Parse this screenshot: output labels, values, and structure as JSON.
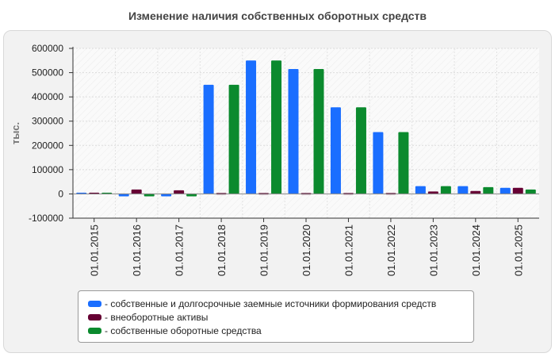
{
  "chart_data": {
    "type": "bar",
    "title": "Изменение наличия собственных оборотных средств",
    "ylabel": "тыс.",
    "xlabel": "",
    "ylim": [
      -100000,
      600000
    ],
    "yticks": [
      -100000,
      0,
      100000,
      200000,
      300000,
      400000,
      500000,
      600000
    ],
    "categories": [
      "01.01.2015",
      "01.01.2016",
      "01.01.2017",
      "01.01.2018",
      "01.01.2019",
      "01.01.2020",
      "01.01.2021",
      "01.01.2022",
      "01.01.2023",
      "01.01.2024",
      "01.01.2025"
    ],
    "series": [
      {
        "name": "- собственные и долгосрочные заемные источники формирования средств",
        "color": "#1a6eff",
        "values": [
          5000,
          -10000,
          -10000,
          450000,
          550000,
          515000,
          357000,
          255000,
          32000,
          32000,
          25000
        ]
      },
      {
        "name": "- внеоборотные активы",
        "color": "#660033",
        "values": [
          5000,
          18000,
          15000,
          4000,
          4000,
          4000,
          4000,
          4000,
          10000,
          12000,
          25000
        ]
      },
      {
        "name": "- собственные оборотные средства",
        "color": "#0b8a2e",
        "values": [
          5000,
          -10000,
          -10000,
          450000,
          550000,
          515000,
          357000,
          255000,
          32000,
          28000,
          18000
        ]
      }
    ],
    "grid": true,
    "legend_position": "bottom"
  }
}
